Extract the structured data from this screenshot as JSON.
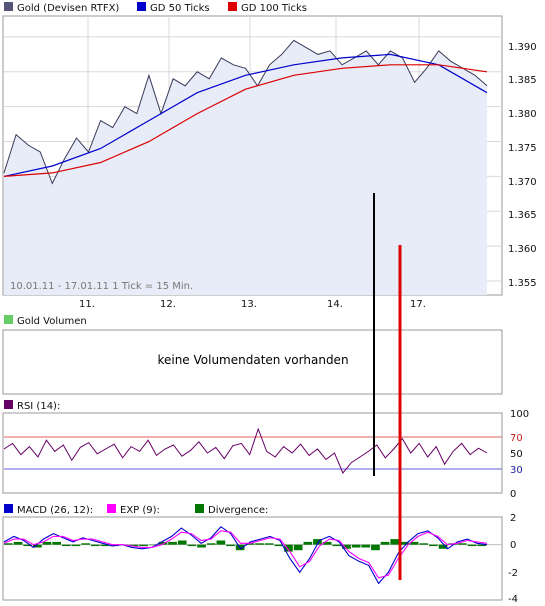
{
  "price_panel": {
    "legend": [
      {
        "label": "Gold (Devisen RTFX)",
        "color": "#555577"
      },
      {
        "label": "GD 50 Ticks",
        "color": "#0000cc"
      },
      {
        "label": "GD 100 Ticks",
        "color": "#dd0000"
      }
    ],
    "info": "10.01.11 - 17.01.11   1 Tick = 15 Min.",
    "x_labels": [
      "11.",
      "12.",
      "13.",
      "14.",
      "17."
    ],
    "y_ticks": [
      "1.390",
      "1.385",
      "1.380",
      "1.375",
      "1.370",
      "1.365",
      "1.360",
      "1.355"
    ]
  },
  "volume_panel": {
    "legend": [
      {
        "label": "Gold Volumen",
        "color": "#66cc66"
      }
    ],
    "message": "keine Volumendaten vorhanden"
  },
  "rsi_panel": {
    "legend": [
      {
        "label": "RSI (14):",
        "color": "#660066"
      }
    ],
    "y_ticks": [
      "100",
      "70",
      "50",
      "30",
      "0"
    ]
  },
  "macd_panel": {
    "legend": [
      {
        "label": "MACD (26, 12):",
        "color": "#0000cc"
      },
      {
        "label": "EXP (9):",
        "color": "#ff00ff"
      },
      {
        "label": "Divergence:",
        "color": "#007700"
      }
    ],
    "y_ticks": [
      "2",
      "0",
      "-2",
      "-4"
    ]
  },
  "chart_data": [
    {
      "type": "line",
      "title": "Gold (Devisen RTFX)",
      "x": [
        "10.01.",
        "11.",
        "12.",
        "13.",
        "14.",
        "17."
      ],
      "ylim": [
        1.353,
        1.393
      ],
      "grid": true,
      "legend_position": "top-left",
      "series": [
        {
          "name": "Gold (Devisen RTFX)",
          "x": [
            0,
            0.6,
            1.2,
            1.8,
            2.4,
            3.0,
            3.6,
            4.2,
            4.8,
            5.4,
            6.0,
            6.6,
            7.2,
            7.8,
            8.4,
            9.0,
            9.6,
            10.2,
            10.8,
            11.4,
            12.0,
            12.6,
            13.2,
            13.8,
            14.4,
            15.0,
            15.6,
            16.2,
            16.8,
            17.4,
            18.0,
            18.6,
            19.2,
            19.8,
            20.4,
            21.0,
            21.6,
            22.2,
            22.8,
            23.4,
            24.0
          ],
          "values": [
            1.3705,
            1.376,
            1.3745,
            1.3735,
            1.369,
            1.3725,
            1.3755,
            1.3735,
            1.378,
            1.377,
            1.38,
            1.379,
            1.3845,
            1.379,
            1.384,
            1.383,
            1.385,
            1.384,
            1.387,
            1.386,
            1.3855,
            1.383,
            1.386,
            1.3875,
            1.3895,
            1.3885,
            1.3875,
            1.388,
            1.386,
            1.387,
            1.388,
            1.386,
            1.388,
            1.387,
            1.3835,
            1.3855,
            1.388,
            1.3865,
            1.3855,
            1.3845,
            1.383
          ]
        },
        {
          "name": "GD 50 Ticks",
          "x": [
            0,
            2.4,
            4.8,
            7.2,
            9.6,
            12.0,
            14.4,
            16.8,
            19.2,
            21.6,
            24.0
          ],
          "values": [
            1.37,
            1.3715,
            1.374,
            1.378,
            1.382,
            1.3845,
            1.386,
            1.387,
            1.3875,
            1.386,
            1.382
          ]
        },
        {
          "name": "GD 100 Ticks",
          "x": [
            0,
            2.4,
            4.8,
            7.2,
            9.6,
            12.0,
            14.4,
            16.8,
            19.2,
            21.6,
            24.0
          ],
          "values": [
            1.37,
            1.3705,
            1.372,
            1.375,
            1.379,
            1.3825,
            1.3845,
            1.3855,
            1.386,
            1.386,
            1.385
          ]
        }
      ]
    },
    {
      "type": "line",
      "title": "RSI (14):",
      "ylim": [
        0,
        100
      ],
      "reference_lines": [
        70,
        30
      ],
      "series": [
        {
          "name": "RSI (14)",
          "values": [
            55,
            62,
            48,
            58,
            45,
            66,
            52,
            60,
            41,
            57,
            63,
            49,
            55,
            61,
            44,
            58,
            52,
            66,
            47,
            55,
            60,
            46,
            53,
            64,
            50,
            57,
            43,
            59,
            62,
            48,
            80,
            52,
            45,
            58,
            50,
            61,
            47,
            55,
            42,
            50,
            25,
            38,
            45,
            52,
            60,
            44,
            55,
            68,
            50,
            62,
            45,
            58,
            36,
            52,
            62,
            48,
            56,
            50
          ]
        }
      ]
    },
    {
      "type": "line",
      "title": "MACD (26, 12):",
      "ylim": [
        -4,
        2
      ],
      "series": [
        {
          "name": "MACD (26, 12)",
          "values": [
            0.2,
            0.6,
            0.3,
            -0.2,
            0.4,
            0.8,
            0.5,
            0.2,
            0.5,
            0.3,
            0.1,
            -0.1,
            0.0,
            -0.2,
            -0.3,
            -0.2,
            0.2,
            0.6,
            1.2,
            0.7,
            0.1,
            0.5,
            1.3,
            0.8,
            -0.3,
            0.2,
            0.4,
            0.6,
            0.3,
            -1.0,
            -2.0,
            -1.0,
            0.3,
            0.6,
            0.2,
            -0.8,
            -1.2,
            -1.5,
            -2.8,
            -2.0,
            -0.6,
            0.2,
            0.8,
            1.0,
            0.5,
            -0.3,
            0.2,
            0.4,
            0.1,
            0.0
          ]
        },
        {
          "name": "EXP (9)",
          "values": [
            0.1,
            0.4,
            0.4,
            0.0,
            0.2,
            0.6,
            0.6,
            0.3,
            0.4,
            0.4,
            0.2,
            0.0,
            0.0,
            -0.1,
            -0.2,
            -0.2,
            0.0,
            0.4,
            0.9,
            0.8,
            0.3,
            0.4,
            1.0,
            0.9,
            0.1,
            0.1,
            0.3,
            0.5,
            0.4,
            -0.5,
            -1.6,
            -1.2,
            -0.1,
            0.4,
            0.3,
            -0.5,
            -1.0,
            -1.3,
            -2.4,
            -2.2,
            -1.0,
            0.0,
            0.6,
            0.9,
            0.6,
            0.0,
            0.1,
            0.3,
            0.2,
            0.1
          ]
        },
        {
          "name": "Divergence",
          "values": [
            0.1,
            0.2,
            -0.1,
            -0.2,
            0.2,
            0.2,
            -0.1,
            -0.1,
            0.1,
            -0.1,
            -0.1,
            -0.1,
            0.0,
            -0.1,
            -0.1,
            0.0,
            0.2,
            0.2,
            0.3,
            -0.1,
            -0.2,
            0.1,
            0.3,
            -0.1,
            -0.4,
            0.1,
            0.1,
            0.1,
            -0.1,
            -0.5,
            -0.4,
            0.2,
            0.4,
            0.2,
            -0.1,
            -0.3,
            -0.2,
            -0.2,
            -0.4,
            0.2,
            0.4,
            0.2,
            0.2,
            0.1,
            -0.1,
            -0.3,
            0.1,
            0.1,
            -0.1,
            -0.1
          ]
        }
      ]
    }
  ]
}
